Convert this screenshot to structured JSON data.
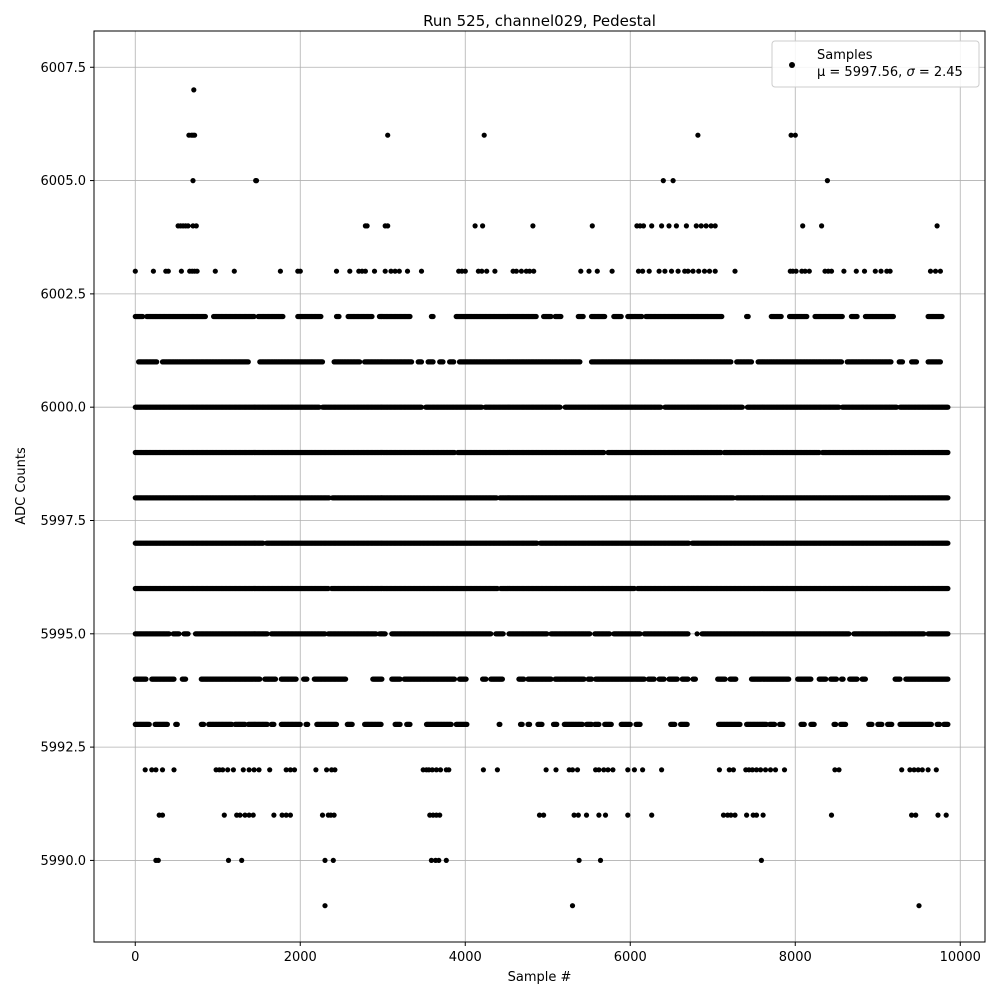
{
  "chart_data": {
    "type": "scatter",
    "title": "Run 525, channel029, Pedestal",
    "xlabel": "Sample #",
    "ylabel": "ADC Counts",
    "xlim": [
      -500,
      10300
    ],
    "ylim": [
      5988.2,
      6008.3
    ],
    "xticks": [
      0,
      2000,
      4000,
      6000,
      8000,
      10000
    ],
    "yticks": [
      5990.0,
      5992.5,
      5995.0,
      5997.5,
      6000.0,
      6002.5,
      6005.0,
      6007.5
    ],
    "xtick_labels": [
      "0",
      "2000",
      "4000",
      "6000",
      "8000",
      "10000"
    ],
    "ytick_labels": [
      "5990.0",
      "5992.5",
      "5995.0",
      "5997.5",
      "6000.0",
      "6002.5",
      "6005.0",
      "6007.5"
    ],
    "grid": true,
    "marker_color": "#000000",
    "legend": {
      "position": "top-right",
      "series_name": "Samples",
      "stats_prefix": "μ = 5997.56, ",
      "sigma_symbol": "σ",
      "stats_suffix": " = 2.45"
    },
    "n_samples": 9850,
    "mean": 5997.56,
    "sigma": 2.45,
    "levels": [
      {
        "y": 6007,
        "x": [
          710
        ]
      },
      {
        "y": 6006,
        "x": [
          650,
          680,
          700,
          720,
          3060,
          4230,
          6820,
          7950,
          8000
        ]
      },
      {
        "y": 6005,
        "x": [
          700,
          1460,
          1470,
          6400,
          6520,
          8390
        ]
      },
      {
        "y": 6004,
        "x": [
          520,
          550,
          580,
          610,
          640,
          700,
          740,
          2790,
          2810,
          3030,
          3060,
          4120,
          4210,
          4820,
          5540,
          6080,
          6120,
          6160,
          6260,
          6380,
          6470,
          6560,
          6680,
          6800,
          6860,
          6920,
          6980,
          7030,
          8090,
          8320,
          9720
        ]
      },
      {
        "y": 6003,
        "x": [
          0,
          220,
          370,
          400,
          560,
          660,
          690,
          720,
          750,
          970,
          1200,
          1760,
          1970,
          2000,
          2440,
          2600,
          2710,
          2750,
          2790,
          2900,
          3030,
          3100,
          3150,
          3200,
          3300,
          3470,
          3920,
          3960,
          4000,
          4160,
          4200,
          4260,
          4360,
          4580,
          4620,
          4680,
          4740,
          4780,
          4830,
          5400,
          5500,
          5600,
          5780,
          6100,
          6150,
          6230,
          6350,
          6420,
          6500,
          6580,
          6660,
          6700,
          6760,
          6830,
          6900,
          6960,
          7030,
          7270,
          7940,
          7970,
          8010,
          8080,
          8120,
          8170,
          8360,
          8400,
          8440,
          8590,
          8740,
          8840,
          8970,
          9040,
          9110,
          9150,
          9640,
          9700,
          9760
        ]
      },
      {
        "y": 5992,
        "x": [
          120,
          200,
          250,
          330,
          470,
          980,
          1020,
          1060,
          1120,
          1190,
          1310,
          1380,
          1440,
          1500,
          1630,
          1830,
          1880,
          1930,
          2190,
          2320,
          2380,
          2420,
          3490,
          3530,
          3560,
          3600,
          3650,
          3700,
          3770,
          3800,
          4220,
          4390,
          4980,
          5100,
          5260,
          5300,
          5360,
          5580,
          5620,
          5680,
          5730,
          5790,
          5970,
          6050,
          6150,
          6380,
          7080,
          7200,
          7250,
          7400,
          7440,
          7480,
          7530,
          7580,
          7640,
          7700,
          7760,
          7870,
          8480,
          8530,
          9290,
          9390,
          9440,
          9490,
          9540,
          9610,
          9710
        ]
      },
      {
        "y": 5991,
        "x": [
          290,
          330,
          1080,
          1230,
          1270,
          1330,
          1380,
          1430,
          1680,
          1780,
          1830,
          1880,
          2270,
          2340,
          2370,
          2410,
          3570,
          3610,
          3650,
          3690,
          4900,
          4950,
          5320,
          5370,
          5470,
          5620,
          5700,
          5970,
          6260,
          7130,
          7180,
          7220,
          7270,
          7410,
          7490,
          7530,
          7610,
          8440,
          9410,
          9460,
          9730,
          9830
        ]
      },
      {
        "y": 5990,
        "x": [
          250,
          280,
          1130,
          1290,
          2300,
          2400,
          3590,
          3640,
          3680,
          3770,
          5380,
          5640,
          7590
        ]
      },
      {
        "y": 5989,
        "x": [
          2300,
          5300,
          9500
        ]
      }
    ],
    "dense_levels": [
      {
        "y": 6002,
        "gaps": [
          [
            100,
            130
          ],
          [
            860,
            940
          ],
          [
            1450,
            1480
          ],
          [
            1800,
            1960
          ],
          [
            2260,
            2430
          ],
          [
            2480,
            2570
          ],
          [
            2880,
            2950
          ],
          [
            3340,
            3580
          ],
          [
            3620,
            3880
          ],
          [
            4870,
            4940
          ],
          [
            5050,
            5080
          ],
          [
            5170,
            5360
          ],
          [
            5440,
            5520
          ],
          [
            5700,
            5790
          ],
          [
            5900,
            5960
          ],
          [
            6150,
            6180
          ],
          [
            7120,
            7400
          ],
          [
            7440,
            7700
          ],
          [
            7840,
            7920
          ],
          [
            8150,
            8230
          ],
          [
            8580,
            8670
          ],
          [
            8760,
            8840
          ],
          [
            9200,
            9600
          ],
          [
            9790,
            9830
          ]
        ],
        "range": [
          0,
          9780
        ]
      },
      {
        "y": 6001,
        "gaps": [
          [
            0,
            30
          ],
          [
            270,
            320
          ],
          [
            1380,
            1500
          ],
          [
            2280,
            2400
          ],
          [
            2730,
            2770
          ],
          [
            3360,
            3420
          ],
          [
            3480,
            3540
          ],
          [
            3620,
            3680
          ],
          [
            3740,
            3800
          ],
          [
            3870,
            3920
          ],
          [
            5400,
            5520
          ],
          [
            7230,
            7280
          ],
          [
            7480,
            7540
          ],
          [
            8570,
            8620
          ],
          [
            9170,
            9250
          ],
          [
            9310,
            9400
          ],
          [
            9480,
            9600
          ]
        ],
        "range": [
          0,
          9760
        ]
      },
      {
        "y": 6000,
        "gaps": [
          [
            2240,
            2260
          ],
          [
            3480,
            3510
          ],
          [
            4210,
            4230
          ],
          [
            5160,
            5200
          ],
          [
            6380,
            6410
          ],
          [
            7370,
            7410
          ],
          [
            8540,
            8560
          ],
          [
            9240,
            9260
          ]
        ],
        "range": [
          0,
          9850
        ]
      },
      {
        "y": 5999,
        "gaps": [
          [
            3880,
            3900
          ],
          [
            5690,
            5720
          ],
          [
            7110,
            7130
          ],
          [
            8300,
            8320
          ]
        ],
        "range": [
          0,
          9850
        ]
      },
      {
        "y": 5998,
        "gaps": [
          [
            2360,
            2380
          ],
          [
            4390,
            4410
          ],
          [
            7260,
            7280
          ]
        ],
        "range": [
          0,
          9850
        ]
      },
      {
        "y": 5997,
        "gaps": [
          [
            1560,
            1580
          ],
          [
            4880,
            4900
          ],
          [
            6720,
            6740
          ]
        ],
        "range": [
          0,
          9850
        ]
      },
      {
        "y": 5996,
        "gaps": [
          [
            2350,
            2370
          ],
          [
            4400,
            4420
          ],
          [
            6060,
            6080
          ]
        ],
        "range": [
          0,
          9850
        ]
      },
      {
        "y": 5995,
        "gaps": [
          [
            420,
            450
          ],
          [
            540,
            580
          ],
          [
            650,
            720
          ],
          [
            1610,
            1640
          ],
          [
            2310,
            2330
          ],
          [
            2930,
            2950
          ],
          [
            3040,
            3100
          ],
          [
            4320,
            4360
          ],
          [
            4470,
            4520
          ],
          [
            5000,
            5030
          ],
          [
            5520,
            5560
          ],
          [
            5760,
            5790
          ],
          [
            6130,
            6160
          ],
          [
            6710,
            6800
          ],
          [
            6820,
            6860
          ],
          [
            8660,
            8700
          ],
          [
            9570,
            9600
          ]
        ],
        "range": [
          0,
          9850
        ]
      },
      {
        "y": 5994,
        "gaps": [
          [
            140,
            190
          ],
          [
            480,
            560
          ],
          [
            620,
            790
          ],
          [
            1520,
            1560
          ],
          [
            1710,
            1760
          ],
          [
            1960,
            2030
          ],
          [
            2090,
            2160
          ],
          [
            2560,
            2870
          ],
          [
            3000,
            3100
          ],
          [
            3220,
            3250
          ],
          [
            3880,
            3920
          ],
          [
            4020,
            4200
          ],
          [
            4260,
            4300
          ],
          [
            4460,
            4640
          ],
          [
            4720,
            4750
          ],
          [
            5050,
            5080
          ],
          [
            5450,
            5480
          ],
          [
            5540,
            5570
          ],
          [
            6180,
            6210
          ],
          [
            6300,
            6340
          ],
          [
            6420,
            6460
          ],
          [
            6580,
            6620
          ],
          [
            6710,
            6750
          ],
          [
            6800,
            7050
          ],
          [
            7160,
            7200
          ],
          [
            7290,
            7460
          ],
          [
            7930,
            8020
          ],
          [
            8200,
            8280
          ],
          [
            8380,
            8420
          ],
          [
            8510,
            8550
          ],
          [
            8590,
            8650
          ],
          [
            8760,
            8800
          ],
          [
            8860,
            9200
          ],
          [
            9280,
            9330
          ]
        ],
        "range": [
          0,
          9850
        ]
      },
      {
        "y": 5993,
        "gaps": [
          [
            180,
            230
          ],
          [
            400,
            480
          ],
          [
            520,
            790
          ],
          [
            840,
            880
          ],
          [
            1180,
            1200
          ],
          [
            1340,
            1360
          ],
          [
            1610,
            1640
          ],
          [
            1690,
            1760
          ],
          [
            2010,
            2060
          ],
          [
            2100,
            2190
          ],
          [
            2450,
            2560
          ],
          [
            2640,
            2770
          ],
          [
            2990,
            3140
          ],
          [
            3220,
            3280
          ],
          [
            3340,
            3520
          ],
          [
            3840,
            3880
          ],
          [
            4030,
            4400
          ],
          [
            4430,
            4660
          ],
          [
            4700,
            4750
          ],
          [
            4790,
            4870
          ],
          [
            4940,
            5060
          ],
          [
            5120,
            5190
          ],
          [
            5430,
            5460
          ],
          [
            5540,
            5560
          ],
          [
            5630,
            5680
          ],
          [
            5780,
            5880
          ],
          [
            6010,
            6060
          ],
          [
            6130,
            6480
          ],
          [
            6550,
            6600
          ],
          [
            6700,
            7060
          ],
          [
            7340,
            7400
          ],
          [
            7660,
            7680
          ],
          [
            7760,
            7800
          ],
          [
            7860,
            8060
          ],
          [
            8120,
            8180
          ],
          [
            8240,
            8460
          ],
          [
            8500,
            8540
          ],
          [
            8620,
            8880
          ],
          [
            8940,
            8990
          ],
          [
            9060,
            9110
          ],
          [
            9180,
            9260
          ],
          [
            9660,
            9710
          ],
          [
            9760,
            9790
          ]
        ],
        "range": [
          0,
          9850
        ]
      }
    ]
  }
}
